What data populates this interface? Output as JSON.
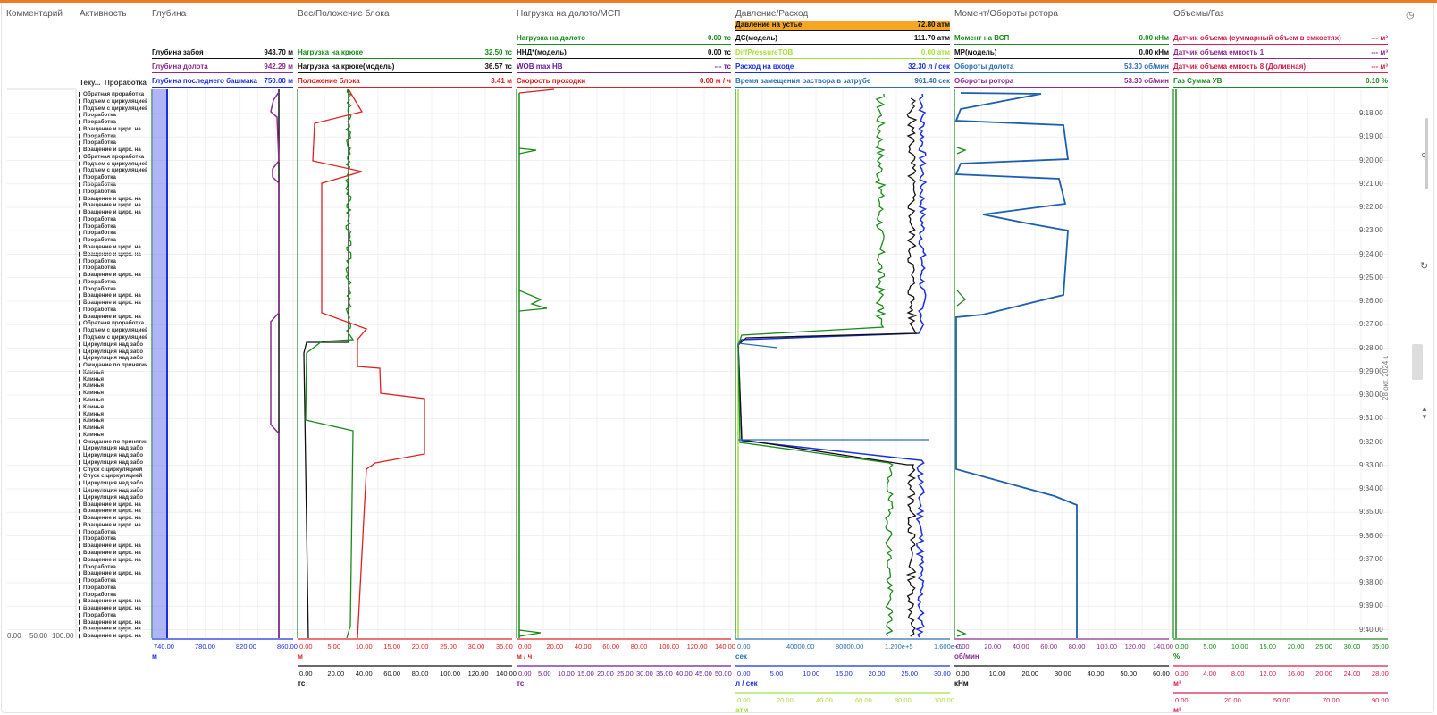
{
  "headers": {
    "comment": "Комментарий",
    "activity": "Активность",
    "depth": "Глубина",
    "weight": "Вес/Положение блока",
    "load": "Нагрузка на долото/МСП",
    "pressure": "Давление/Расход",
    "torque": "Момент/Обороты ротора",
    "volumes": "Объемы/Газ"
  },
  "activity_subheaders": {
    "current": "Теку...",
    "drilling": "Проработка"
  },
  "date_label": "28 окт. 2024 г.",
  "time_ticks": [
    "9:18:00",
    "9:19:00",
    "9:20:00",
    "9:21:00",
    "9:22:00",
    "9:23:00",
    "9:24:00",
    "9:25:00",
    "9:26:00",
    "9:27:00",
    "9:28:00",
    "9:29:00",
    "9:30:00",
    "9:31:00",
    "9:32:00",
    "9:33:00",
    "9:34:00",
    "9:35:00",
    "9:36:00",
    "9:37:00",
    "9:38:00",
    "9:39:00",
    "9:40:00"
  ],
  "comment_axis": [
    "0.00",
    "50.00",
    "100.00"
  ],
  "activities": [
    "Обратная проработка",
    "Подъем с циркуляцией",
    "Подъем с циркуляцией",
    "Проработка",
    "Проработка",
    "Вращение и цирк. на",
    "Проработка",
    "Проработка",
    "Вращение и цирк. на",
    "Обратная проработка",
    "Подъем с циркуляцией",
    "Подъем с циркуляцией",
    "Проработка",
    "Проработка",
    "Проработка",
    "Вращение и цирк. на",
    "Вращение и цирк. на",
    "Вращение и цирк. на",
    "Проработка",
    "Проработка",
    "Проработка",
    "Проработка",
    "Вращение и цирк. на",
    "Вращение и цирк. на",
    "Проработка",
    "Проработка",
    "Вращение и цирк. на",
    "Проработка",
    "Проработка",
    "Вращение и цирк. на",
    "Вращение и цирк. на",
    "Проработка",
    "Вращение и цирк. на",
    "Обратная проработка",
    "Подъем с циркуляцией",
    "Подъем с циркуляцией",
    "Циркуляция над забо",
    "Циркуляция над забо",
    "Циркуляция над забо",
    "Ожидание по принятию",
    "Клинья",
    "Клинья",
    "Клинья",
    "Клинья",
    "Клинья",
    "Клинья",
    "Клинья",
    "Клинья",
    "Клинья",
    "Клинья",
    "Ожидание по принятию",
    "Циркуляция над забо",
    "Циркуляция над забо",
    "Циркуляция над забо",
    "Спуск с циркуляцией",
    "Спуск с циркуляцией",
    "Циркуляция над забо",
    "Циркуляция над забо",
    "Циркуляция над забо",
    "Вращение и цирк. на",
    "Вращение и цирк. на",
    "Вращение и цирк. на",
    "Вращение и цирк. на",
    "Проработка",
    "Проработка",
    "Вращение и цирк. на",
    "Вращение и цирк. на",
    "Вращение и цирк. на",
    "Проработка",
    "Вращение и цирк. на",
    "Проработка",
    "Проработка",
    "Проработка",
    "Вращение и цирк. на",
    "Вращение и цирк. на",
    "Проработка",
    "Вращение и цирк. на",
    "Вращение и цирк. на",
    "Вращение и цирк. на"
  ],
  "tracks": [
    {
      "id": "depth",
      "x": 170,
      "w": 158,
      "rows": [
        {
          "label": "Глубина забоя",
          "value": "943.70 м",
          "color": "#111111",
          "row": 1
        },
        {
          "label": "Глубина долота",
          "value": "942.29 м",
          "color": "#8e2a8e",
          "row": 2
        },
        {
          "label": "Глубина последнего башмака",
          "value": "750.00 м",
          "color": "#1c2fe0",
          "row": 3
        }
      ],
      "axes": [
        {
          "ticks": [
            "740.00",
            "780.00",
            "820.00",
            "860.00"
          ],
          "unit": "м",
          "color": "#1c2fe0"
        }
      ]
    },
    {
      "id": "weight",
      "x": 333,
      "w": 240,
      "rows": [
        {
          "label": "Нагрузка на крюке",
          "value": "32.50 тс",
          "color": "#1a8a1a",
          "row": 1
        },
        {
          "label": "Нагрузка на крюке(модель)",
          "value": "36.57 тс",
          "color": "#111111",
          "row": 2
        },
        {
          "label": "Положение блока",
          "value": "3.41 м",
          "color": "#e02020",
          "row": 3
        }
      ],
      "axes": [
        {
          "ticks": [
            "0.00",
            "5.00",
            "10.00",
            "15.00",
            "20.00",
            "25.00",
            "30.00",
            "35.00"
          ],
          "unit": "м",
          "color": "#e02020"
        },
        {
          "ticks": [
            "0.00",
            "20.00",
            "40.00",
            "60.00",
            "80.00",
            "100.00",
            "120.00",
            "140.00"
          ],
          "unit": "тс",
          "color": "#111111"
        }
      ]
    },
    {
      "id": "load",
      "x": 578,
      "w": 240,
      "rows": [
        {
          "label": "Нагрузка на долото",
          "value": "0.00 тс",
          "color": "#1a8a1a",
          "row": 0
        },
        {
          "label": "ННД*(модель)",
          "value": "0.00 тс",
          "color": "#111111",
          "row": 1
        },
        {
          "label": "WOB max HB",
          "value": "--- тс",
          "color": "#6a1a9a",
          "row": 2
        },
        {
          "label": "Скорость проходки",
          "value": "0.00 м / ч",
          "color": "#e02020",
          "row": 3
        }
      ],
      "axes": [
        {
          "ticks": [
            "0.00",
            "20.00",
            "40.00",
            "60.00",
            "80.00",
            "100.00",
            "120.00",
            "140.00"
          ],
          "unit": "м / ч",
          "color": "#e02020"
        },
        {
          "ticks": [
            "0.00",
            "5.00",
            "10.00",
            "15.00",
            "20.00",
            "25.00",
            "30.00",
            "35.00",
            "40.00",
            "45.00",
            "50.00"
          ],
          "unit": "тс",
          "color": "#6a1a9a"
        }
      ]
    },
    {
      "id": "pressure",
      "x": 823,
      "w": 240,
      "rows": [
        {
          "label": "Давление на устье",
          "value": "72.80 атм",
          "color": "#111111",
          "row": -1,
          "highlight": "#f5a623"
        },
        {
          "label": "ДС(модель)",
          "value": "111.70 атм",
          "color": "#111111",
          "row": 0
        },
        {
          "label": "DiffPressureTOB",
          "value": "0.00 атм",
          "color": "#a6e03a",
          "row": 1
        },
        {
          "label": "Расход на входе",
          "value": "32.30 л / сек",
          "color": "#1c2fe0",
          "row": 2
        },
        {
          "label": "Время замещения раствора в затрубе",
          "value": "961.40 сек",
          "color": "#2a6fb0",
          "row": 3
        }
      ],
      "axes": [
        {
          "ticks": [
            "0.00",
            "40000.00",
            "80000.00",
            "1.200e+5",
            "1.600e+5"
          ],
          "unit": "сек",
          "color": "#2a6fb0"
        },
        {
          "ticks": [
            "0.00",
            "5.00",
            "10.00",
            "15.00",
            "20.00",
            "25.00",
            "30.00"
          ],
          "unit": "л / сек",
          "color": "#1c2fe0"
        },
        {
          "ticks": [
            "0.00",
            "20.00",
            "40.00",
            "60.00",
            "80.00",
            "100.00"
          ],
          "unit": "атм",
          "color": "#a6e03a"
        }
      ]
    },
    {
      "id": "torque",
      "x": 1068,
      "w": 240,
      "rows": [
        {
          "label": "Момент на ВСП",
          "value": "0.00 кНм",
          "color": "#1a8a1a",
          "row": 0
        },
        {
          "label": "МР(модель)",
          "value": "0.00 кНм",
          "color": "#111111",
          "row": 1
        },
        {
          "label": "Обороты долота",
          "value": "53.30 об/мин",
          "color": "#2a6fb0",
          "row": 2
        },
        {
          "label": "Обороты ротора",
          "value": "53.30 об/мин",
          "color": "#8e2a8e",
          "row": 3
        }
      ],
      "axes": [
        {
          "ticks": [
            "0.00",
            "20.00",
            "40.00",
            "60.00",
            "80.00",
            "100.00",
            "120.00",
            "140.00"
          ],
          "unit": "об/мин",
          "color": "#8e2a8e"
        },
        {
          "ticks": [
            "0.00",
            "10.00",
            "20.00",
            "30.00",
            "40.00",
            "50.00",
            "60.00"
          ],
          "unit": "кНм",
          "color": "#111111"
        }
      ]
    },
    {
      "id": "volumes",
      "x": 1313,
      "w": 240,
      "rows": [
        {
          "label": "Датчик объема (суммарный объем в емкостях)",
          "value": "--- м³",
          "color": "#d4204a",
          "row": 0
        },
        {
          "label": "Датчик объема емкость 1",
          "value": "--- м³",
          "color": "#8e2a8e",
          "row": 1
        },
        {
          "label": "Датчик объема емкость 8 (Доливная)",
          "value": "--- м³",
          "color": "#d4204a",
          "row": 2
        },
        {
          "label": "Газ Сумма УВ",
          "value": "0.10 %",
          "color": "#1a8a1a",
          "row": 3
        }
      ],
      "axes": [
        {
          "ticks": [
            "0.00",
            "5.00",
            "10.00",
            "15.00",
            "20.00",
            "25.00",
            "30.00",
            "35.00"
          ],
          "unit": "%",
          "color": "#1a8a1a"
        },
        {
          "ticks": [
            "0.00",
            "4.00",
            "8.00",
            "12.00",
            "16.00",
            "20.00",
            "24.00",
            "28.00"
          ],
          "unit": "м³",
          "color": "#d4204a"
        },
        {
          "ticks": [
            "0.00",
            "20.00",
            "50.00",
            "70.00",
            "90.00"
          ],
          "unit": "м³",
          "color": "#d4204a"
        }
      ]
    }
  ],
  "colors": {
    "accent": "#ee7d22",
    "grid": "#ececec"
  },
  "icons": [
    "clock-icon",
    "search-icon",
    "refresh-icon",
    "chevron-up-icon",
    "chevron-down-icon"
  ]
}
